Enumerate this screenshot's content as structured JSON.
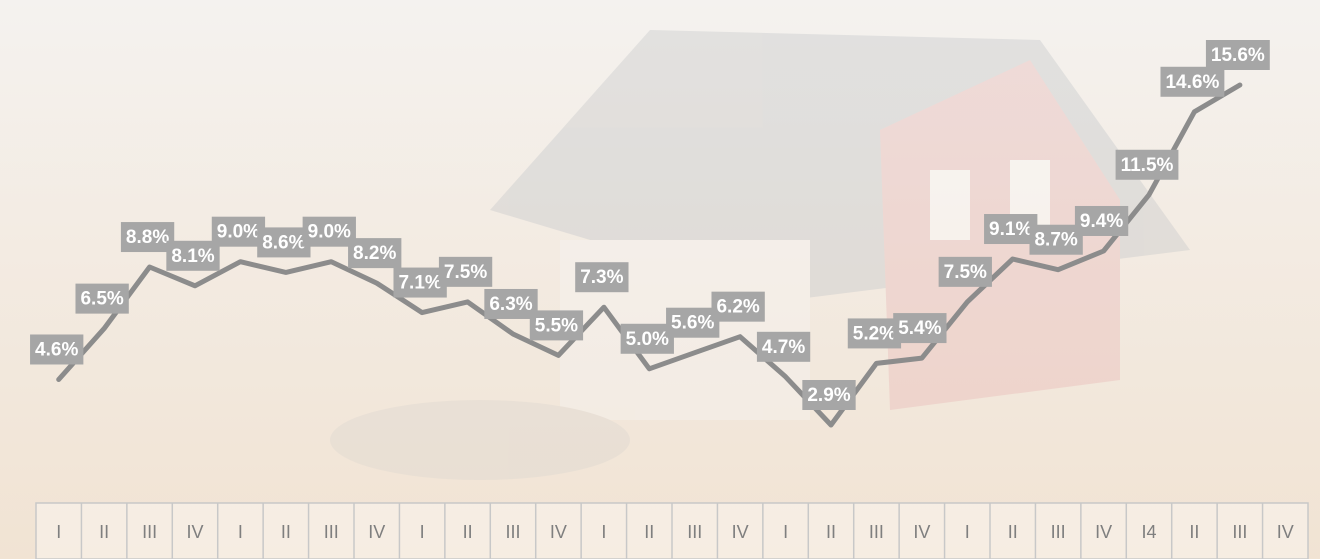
{
  "chart_data": {
    "type": "line",
    "color": "#8c8c8c",
    "label_color": "#a6a6a6",
    "categories": [
      "I",
      "II",
      "III",
      "IV",
      "I",
      "II",
      "III",
      "IV",
      "I",
      "II",
      "III",
      "IV",
      "I",
      "II",
      "III",
      "IV",
      "I",
      "II",
      "III",
      "IV",
      "I",
      "II",
      "III",
      "IV",
      "I4",
      "II",
      "III",
      "IV"
    ],
    "values": [
      4.6,
      6.5,
      8.8,
      8.1,
      9.0,
      8.6,
      9.0,
      8.2,
      7.1,
      7.5,
      6.3,
      5.5,
      7.3,
      5.0,
      5.6,
      6.2,
      4.7,
      2.9,
      5.2,
      5.4,
      7.5,
      9.1,
      8.7,
      9.4,
      11.5,
      14.6,
      15.6,
      null
    ],
    "value_labels": [
      "4.6%",
      "6.5%",
      "8.8%",
      "8.1%",
      "9.0%",
      "8.6%",
      "9.0%",
      "8.2%",
      "7.1%",
      "7.5%",
      "6.3%",
      "5.5%",
      "7.3%",
      "5.0%",
      "5.6%",
      "6.2%",
      "4.7%",
      "2.9%",
      "5.2%",
      "5.4%",
      "7.5%",
      "9.1%",
      "8.7%",
      "9.4%",
      "11.5%",
      "14.6%",
      "15.6%",
      null
    ]
  }
}
